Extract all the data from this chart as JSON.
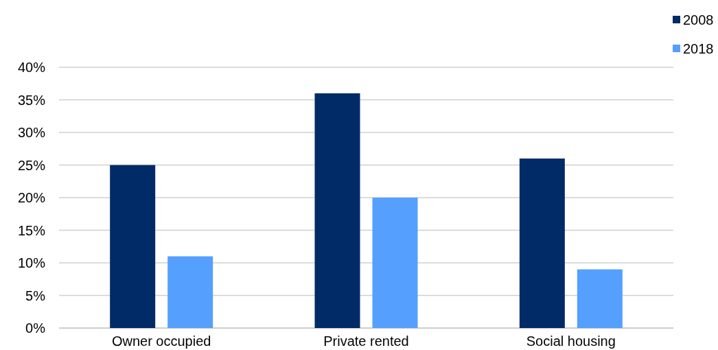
{
  "chart_data": {
    "type": "bar",
    "categories": [
      "Owner occupied",
      "Private rented",
      "Social housing"
    ],
    "series": [
      {
        "name": "2008",
        "color": "#002b66",
        "values": [
          25,
          36,
          26
        ]
      },
      {
        "name": "2018",
        "color": "#559fff",
        "values": [
          11,
          20,
          9
        ]
      }
    ],
    "ylim": [
      0,
      40
    ],
    "yticks": [
      {
        "value": 0,
        "label": "0%"
      },
      {
        "value": 5,
        "label": "5%"
      },
      {
        "value": 10,
        "label": "10%"
      },
      {
        "value": 15,
        "label": "15%"
      },
      {
        "value": 20,
        "label": "20%"
      },
      {
        "value": 25,
        "label": "25%"
      },
      {
        "value": 30,
        "label": "30%"
      },
      {
        "value": 35,
        "label": "35%"
      },
      {
        "value": 40,
        "label": "40%"
      }
    ],
    "grid": "y",
    "legend": "top right"
  }
}
